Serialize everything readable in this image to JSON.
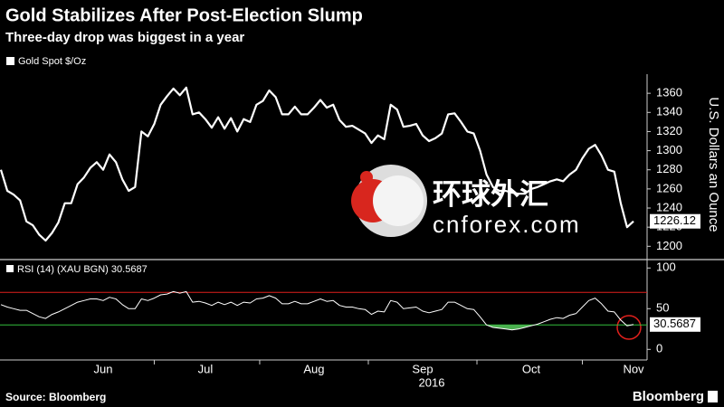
{
  "chart_data": [
    {
      "type": "line",
      "title": "Gold Stabilizes After Post-Election Slump",
      "subtitle": "Three-day drop was biggest in a year",
      "ylabel": "U.S. Dollars an Ounce",
      "series": [
        {
          "name": "Gold Spot $/Oz",
          "color": "#ffffff",
          "values": [
            1280,
            1258,
            1254,
            1248,
            1226,
            1222,
            1212,
            1206,
            1214,
            1225,
            1245,
            1245,
            1265,
            1272,
            1282,
            1288,
            1280,
            1296,
            1288,
            1270,
            1258,
            1262,
            1320,
            1315,
            1328,
            1348,
            1357,
            1365,
            1358,
            1366,
            1338,
            1340,
            1333,
            1324,
            1335,
            1323,
            1334,
            1320,
            1333,
            1330,
            1348,
            1352,
            1363,
            1356,
            1338,
            1338,
            1346,
            1338,
            1338,
            1345,
            1353,
            1345,
            1348,
            1332,
            1325,
            1326,
            1322,
            1318,
            1308,
            1316,
            1312,
            1348,
            1343,
            1325,
            1326,
            1328,
            1316,
            1310,
            1313,
            1318,
            1338,
            1339,
            1330,
            1320,
            1318,
            1300,
            1275,
            1262,
            1258,
            1258,
            1256,
            1255,
            1255,
            1260,
            1262,
            1265,
            1268,
            1270,
            1268,
            1275,
            1280,
            1292,
            1302,
            1306,
            1295,
            1280,
            1278,
            1245,
            1220,
            1226.12
          ]
        }
      ],
      "ylim": [
        1188,
        1380
      ],
      "yticks": [
        1200,
        1220,
        1240,
        1260,
        1280,
        1300,
        1320,
        1340,
        1360
      ]
    },
    {
      "type": "line",
      "series": [
        {
          "name": "RSI (14) (XAU BGN)",
          "color": "#ffffff",
          "values": [
            55,
            52,
            50,
            48,
            48,
            44,
            40,
            38,
            43,
            46,
            50,
            54,
            58,
            60,
            62,
            62,
            60,
            64,
            62,
            55,
            50,
            50,
            62,
            60,
            63,
            67,
            68,
            71,
            69,
            71,
            58,
            59,
            57,
            54,
            58,
            55,
            58,
            54,
            58,
            57,
            62,
            63,
            66,
            63,
            56,
            56,
            59,
            56,
            56,
            59,
            62,
            59,
            60,
            54,
            52,
            52,
            50,
            49,
            43,
            47,
            46,
            60,
            58,
            50,
            51,
            52,
            47,
            45,
            47,
            49,
            58,
            58,
            54,
            50,
            49,
            40,
            30,
            27,
            26,
            25,
            24,
            25,
            27,
            29,
            31,
            34,
            37,
            39,
            38,
            42,
            44,
            52,
            60,
            63,
            56,
            47,
            46,
            36,
            29,
            30.5687
          ]
        }
      ],
      "reference_lines": [
        {
          "value": 70,
          "color": "#e0201c"
        },
        {
          "value": 30,
          "color": "#2fbf3a"
        }
      ],
      "fill_color": "#4caf50",
      "ylim": [
        -13,
        107
      ],
      "yticks": [
        0,
        50,
        100
      ],
      "categories": [
        null,
        null,
        null,
        null,
        null,
        null,
        null,
        null,
        null,
        null,
        null,
        null,
        null,
        null,
        null,
        null,
        "Jun",
        null,
        null,
        null,
        null,
        null,
        null,
        null,
        null,
        null,
        null,
        null,
        null,
        null,
        null,
        null,
        "Jul",
        null,
        null,
        null,
        null,
        null,
        null,
        null,
        null,
        null,
        null,
        null,
        null,
        null,
        null,
        null,
        null,
        "Aug",
        null,
        null,
        null,
        null,
        null,
        null,
        null,
        null,
        null,
        null,
        null,
        null,
        null,
        null,
        null,
        null,
        "Sep",
        null,
        null,
        null,
        null,
        null,
        null,
        null,
        null,
        null,
        null,
        null,
        null,
        null,
        null,
        null,
        null,
        "Oct",
        null,
        null,
        null,
        null,
        null,
        null,
        null,
        null,
        null,
        null,
        null,
        null,
        null,
        null,
        null,
        "Nov"
      ],
      "xlabel": "2016"
    }
  ],
  "watermark": {
    "cn": "环球外汇",
    "en": "cnforex.com"
  },
  "source": "Source: Bloomberg",
  "brand": "Bloomberg"
}
